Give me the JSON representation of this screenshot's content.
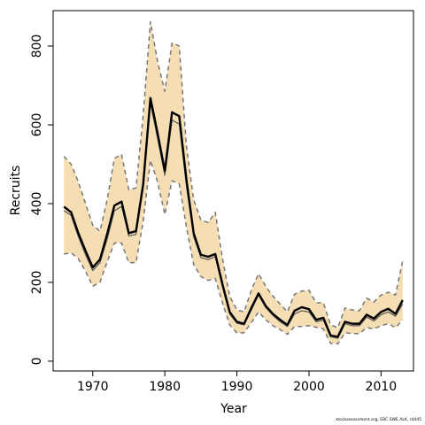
{
  "chart_data": {
    "type": "line",
    "title": "",
    "xlabel": "Year",
    "ylabel": "Recruits",
    "xlim": [
      1964.5,
      2014.5
    ],
    "ylim": [
      -25,
      890
    ],
    "x_ticks": [
      1970,
      1980,
      1990,
      2000,
      2010
    ],
    "y_ticks": [
      0,
      200,
      400,
      600,
      800
    ],
    "grid": false,
    "legend": "none",
    "colors": {
      "band": "#f5deb3",
      "estimate": "#000000",
      "median": "#555555",
      "bounds": "#777777"
    },
    "x": [
      1966,
      1967,
      1968,
      1969,
      1970,
      1971,
      1972,
      1973,
      1974,
      1975,
      1976,
      1977,
      1978,
      1979,
      1980,
      1981,
      1982,
      1983,
      1984,
      1985,
      1986,
      1987,
      1988,
      1989,
      1990,
      1991,
      1992,
      1993,
      1994,
      1995,
      1996,
      1997,
      1998,
      1999,
      2000,
      2001,
      2002,
      2003,
      2004,
      2005,
      2006,
      2007,
      2008,
      2009,
      2010,
      2011,
      2012,
      2013
    ],
    "series": [
      {
        "role": "estimate",
        "style": "solid-thick",
        "values": [
          392,
          378,
          325,
          280,
          238,
          258,
          323,
          395,
          405,
          325,
          330,
          450,
          668,
          578,
          483,
          632,
          622,
          460,
          325,
          270,
          265,
          272,
          195,
          125,
          100,
          95,
          135,
          172,
          140,
          120,
          105,
          92,
          128,
          137,
          132,
          105,
          110,
          65,
          62,
          100,
          95,
          95,
          118,
          108,
          125,
          133,
          120,
          155
        ]
      },
      {
        "role": "median",
        "style": "solid-thin",
        "values": [
          382,
          370,
          316,
          270,
          230,
          250,
          310,
          382,
          393,
          318,
          322,
          440,
          655,
          565,
          472,
          612,
          602,
          445,
          316,
          263,
          258,
          265,
          188,
          120,
          96,
          92,
          130,
          168,
          136,
          116,
          100,
          88,
          120,
          128,
          125,
          100,
          104,
          62,
          58,
          95,
          90,
          90,
          112,
          102,
          118,
          125,
          114,
          145
        ]
      },
      {
        "role": "upper-bound",
        "style": "dashed",
        "values": [
          520,
          500,
          455,
          400,
          345,
          330,
          410,
          515,
          525,
          435,
          440,
          625,
          862,
          760,
          685,
          808,
          800,
          545,
          410,
          358,
          352,
          378,
          260,
          165,
          130,
          125,
          180,
          222,
          190,
          165,
          145,
          125,
          170,
          178,
          180,
          148,
          148,
          92,
          85,
          135,
          130,
          128,
          160,
          150,
          168,
          175,
          168,
          255
        ]
      },
      {
        "role": "lower-bound",
        "style": "dashed",
        "values": [
          272,
          275,
          260,
          228,
          190,
          200,
          252,
          300,
          300,
          250,
          250,
          355,
          510,
          455,
          372,
          458,
          450,
          340,
          245,
          215,
          205,
          210,
          148,
          92,
          72,
          72,
          98,
          125,
          105,
          90,
          80,
          68,
          88,
          88,
          90,
          86,
          82,
          45,
          44,
          72,
          70,
          70,
          85,
          82,
          90,
          95,
          85,
          105
        ]
      }
    ]
  },
  "footer_note": "stockassessment.org, EBC SWE ALK, r4445"
}
